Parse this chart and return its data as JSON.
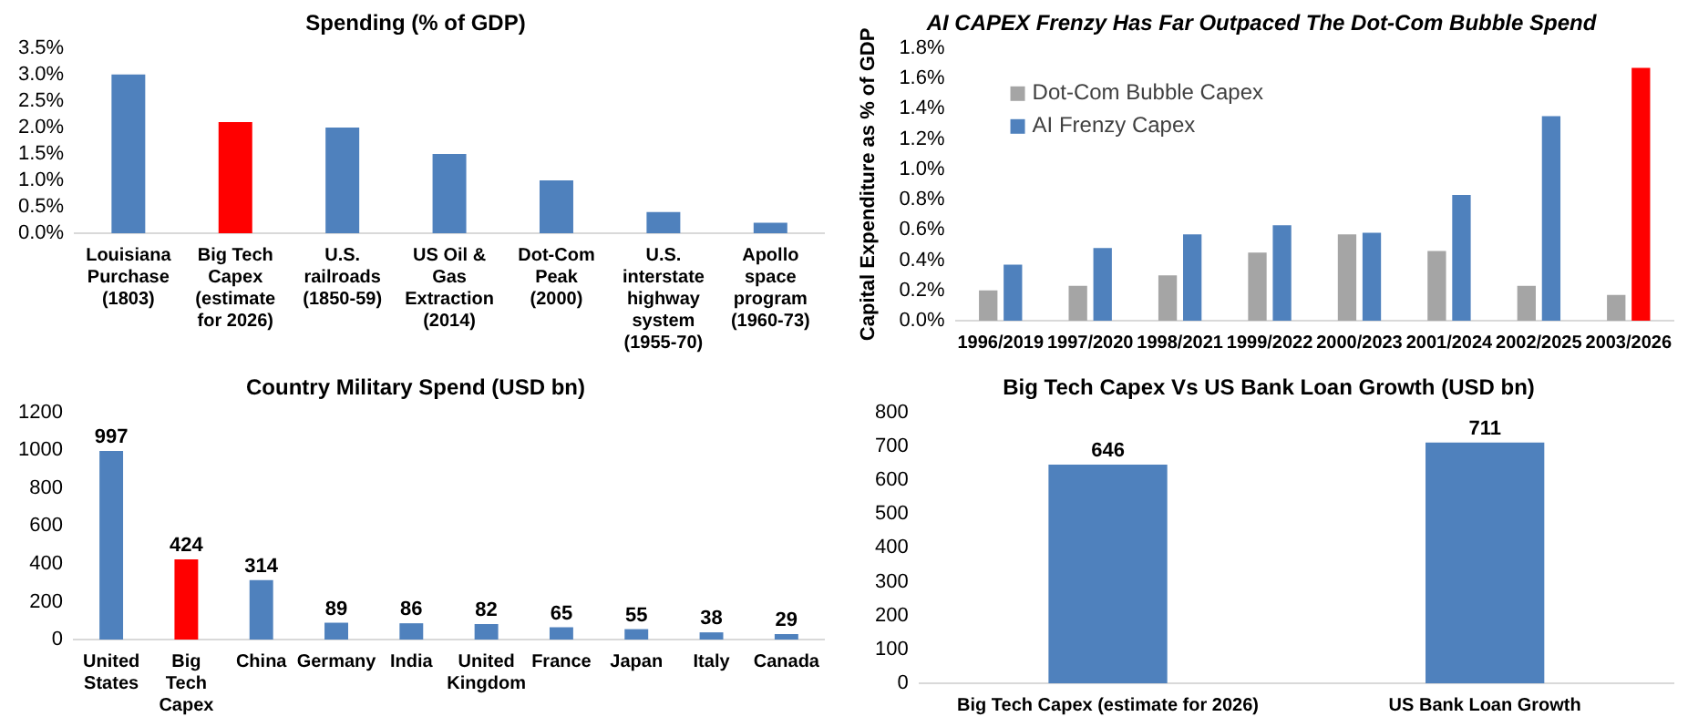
{
  "chart_data": [
    {
      "type": "bar",
      "title": "Spending (% of GDP)",
      "categories": [
        "Louisiana Purchase (1803)",
        "Big Tech Capex (estimate for 2026)",
        "U.S. railroads (1850-59)",
        "US Oil & Gas Extraction (2014)",
        "Dot-Com Peak (2000)",
        "U.S. interstate highway system (1955-70)",
        "Apollo space program (1960-73)"
      ],
      "values": [
        3.0,
        2.1,
        2.0,
        1.5,
        1.0,
        0.4,
        0.2
      ],
      "colors": [
        "#4f81bd",
        "#ff0000",
        "#4f81bd",
        "#4f81bd",
        "#4f81bd",
        "#4f81bd",
        "#4f81bd"
      ],
      "ylim": [
        0,
        3.5
      ],
      "yticks": [
        {
          "value": 0,
          "label": "0.0%"
        },
        {
          "value": 0.5,
          "label": "0.5%"
        },
        {
          "value": 1,
          "label": "1.0%"
        },
        {
          "value": 1.5,
          "label": "1.5%"
        },
        {
          "value": 2,
          "label": "2.0%"
        },
        {
          "value": 2.5,
          "label": "2.5%"
        },
        {
          "value": 3,
          "label": "3.0%"
        },
        {
          "value": 3.5,
          "label": "3.5%"
        }
      ],
      "grid": false,
      "legend": false
    },
    {
      "type": "bar",
      "title": "AI CAPEX Frenzy Has Far Outpaced The Dot-Com Bubble Spend",
      "ylabel": "Capital Expenditure as % of GDP",
      "categories": [
        "1996/2019",
        "1997/2020",
        "1998/2021",
        "1999/2022",
        "2000/2023",
        "2001/2024",
        "2002/2025",
        "2003/2026"
      ],
      "series": [
        {
          "name": "Dot-Com Bubble Capex",
          "color": "#a5a5a5",
          "values": [
            0.2,
            0.23,
            0.3,
            0.45,
            0.57,
            0.46,
            0.23,
            0.17
          ]
        },
        {
          "name": "AI Frenzy Capex",
          "color": "#4f81bd",
          "colors": [
            "#4f81bd",
            "#4f81bd",
            "#4f81bd",
            "#4f81bd",
            "#4f81bd",
            "#4f81bd",
            "#4f81bd",
            "#ff0000"
          ],
          "values": [
            0.37,
            0.48,
            0.57,
            0.63,
            0.58,
            0.83,
            1.35,
            1.67
          ]
        }
      ],
      "ylim": [
        0,
        1.8
      ],
      "yticks": [
        {
          "value": 0,
          "label": "0.0%"
        },
        {
          "value": 0.2,
          "label": "0.2%"
        },
        {
          "value": 0.4,
          "label": "0.4%"
        },
        {
          "value": 0.6,
          "label": "0.6%"
        },
        {
          "value": 0.8,
          "label": "0.8%"
        },
        {
          "value": 1,
          "label": "1.0%"
        },
        {
          "value": 1.2,
          "label": "1.2%"
        },
        {
          "value": 1.4,
          "label": "1.4%"
        },
        {
          "value": 1.6,
          "label": "1.6%"
        },
        {
          "value": 1.8,
          "label": "1.8%"
        }
      ],
      "grid": false,
      "legend": "top left"
    },
    {
      "type": "bar",
      "title": "Country Military Spend (USD bn)",
      "categories": [
        "United States",
        "Big Tech Capex",
        "China",
        "Germany",
        "India",
        "United Kingdom",
        "France",
        "Japan",
        "Italy",
        "Canada"
      ],
      "values": [
        997,
        424,
        314,
        89,
        86,
        82,
        65,
        55,
        38,
        29
      ],
      "colors": [
        "#4f81bd",
        "#ff0000",
        "#4f81bd",
        "#4f81bd",
        "#4f81bd",
        "#4f81bd",
        "#4f81bd",
        "#4f81bd",
        "#4f81bd",
        "#4f81bd"
      ],
      "ylim": [
        0,
        1200
      ],
      "yticks": [
        0,
        200,
        400,
        600,
        800,
        1000,
        1200
      ],
      "grid": false,
      "legend": false,
      "data_labels": true
    },
    {
      "type": "bar",
      "title": "Big Tech Capex Vs US Bank Loan Growth (USD bn)",
      "categories": [
        "Big Tech Capex (estimate for 2026)",
        "US Bank Loan Growth"
      ],
      "values": [
        646,
        711
      ],
      "color": "#4f81bd",
      "ylim": [
        0,
        800
      ],
      "yticks": [
        0,
        100,
        200,
        300,
        400,
        500,
        600,
        700,
        800
      ],
      "grid": false,
      "legend": false,
      "data_labels": true
    }
  ]
}
